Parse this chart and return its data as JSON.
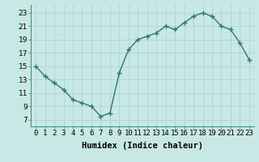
{
  "x": [
    0,
    1,
    2,
    3,
    4,
    5,
    6,
    7,
    8,
    9,
    10,
    11,
    12,
    13,
    14,
    15,
    16,
    17,
    18,
    19,
    20,
    21,
    22,
    23
  ],
  "y": [
    15,
    13.5,
    12.5,
    11.5,
    10,
    9.5,
    9,
    7.5,
    8,
    14,
    17.5,
    19,
    19.5,
    20,
    21,
    20.5,
    21.5,
    22.5,
    23,
    22.5,
    21,
    20.5,
    18.5,
    16
  ],
  "line_color": "#2d7a6a",
  "marker_color": "#2d7a6a",
  "bg_color": "#c8e8e5",
  "grid_color": "#b0d4d0",
  "xlabel": "Humidex (Indice chaleur)",
  "xlabel_fontsize": 7.5,
  "ylabel_ticks": [
    7,
    9,
    11,
    13,
    15,
    17,
    19,
    21,
    23
  ],
  "xlim": [
    -0.5,
    23.5
  ],
  "ylim": [
    6.0,
    24.2
  ],
  "tick_fontsize": 6.5
}
